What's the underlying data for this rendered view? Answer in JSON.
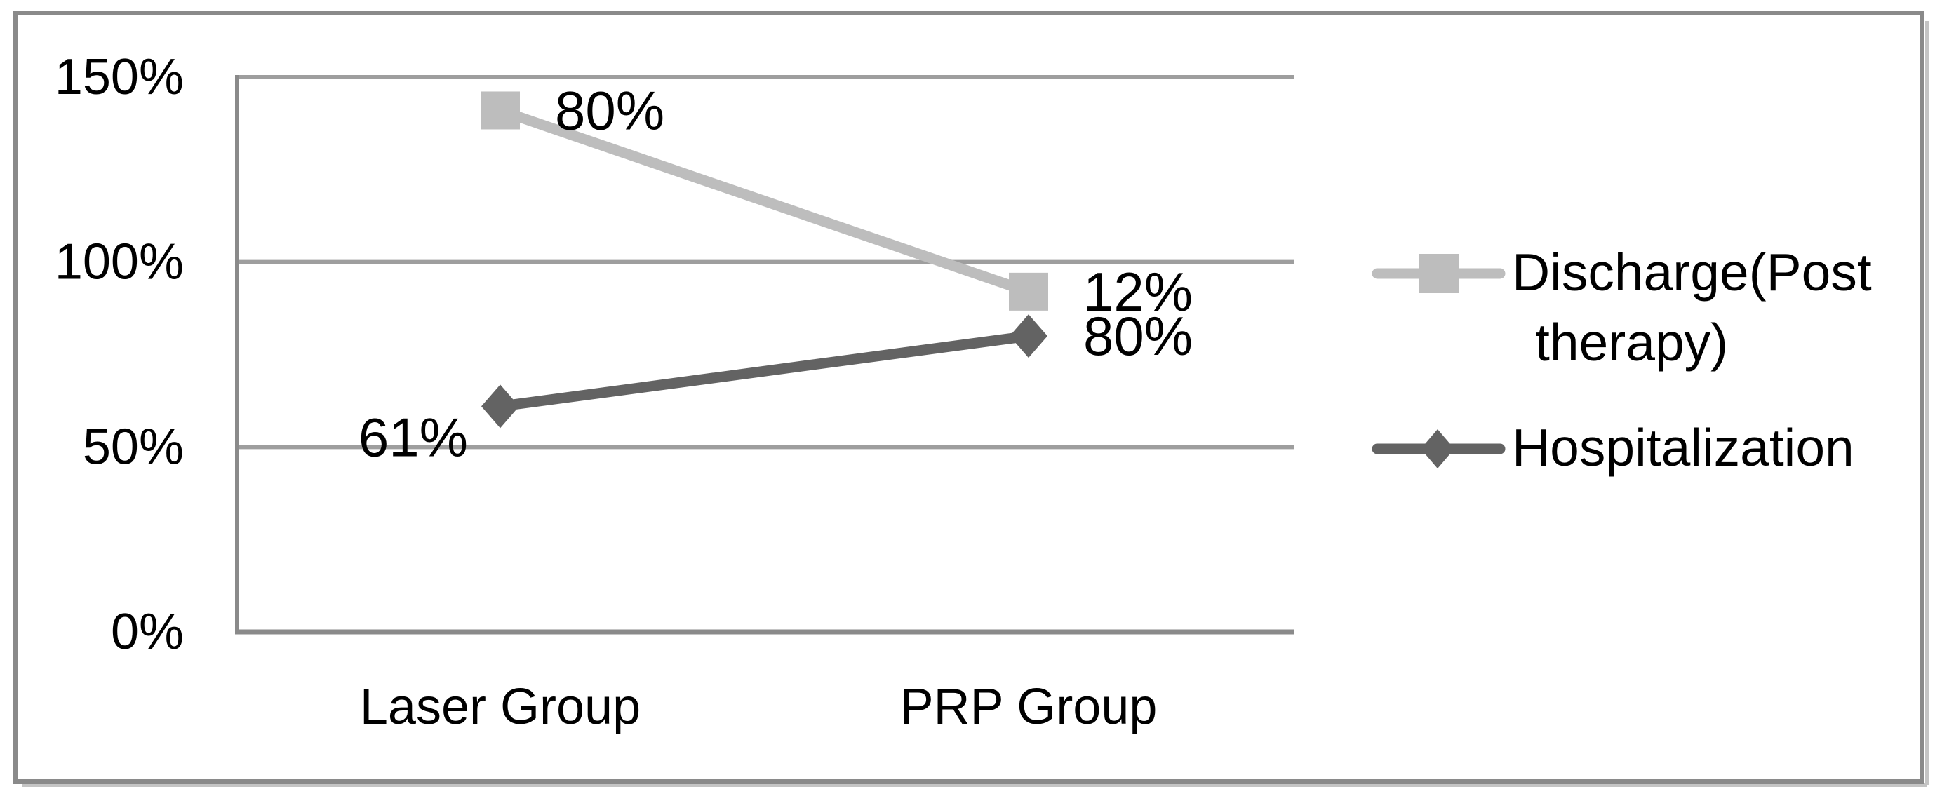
{
  "chart_data": {
    "type": "line",
    "stacked": true,
    "title": "",
    "xlabel": "",
    "ylabel": "",
    "categories": [
      "Laser Group",
      "PRP Group"
    ],
    "series": [
      {
        "name": "Discharge(Post therapy)",
        "values": [
          80,
          12
        ],
        "plotted_cumulative": [
          141,
          92
        ],
        "data_labels": [
          "80%",
          "12%"
        ],
        "label_positions": [
          "right",
          "right"
        ],
        "marker": "square",
        "color": "#bdbdbd",
        "legend_lines": [
          "Discharge(Post",
          "therapy)"
        ]
      },
      {
        "name": "Hospitalization",
        "values": [
          61,
          80
        ],
        "plotted_cumulative": [
          61,
          80
        ],
        "data_labels": [
          "61%",
          "80%"
        ],
        "label_positions": [
          "below-left",
          "right"
        ],
        "marker": "diamond",
        "color": "#636363",
        "legend_lines": [
          "Hospitalization"
        ]
      }
    ],
    "yticks": [
      "0%",
      "50%",
      "100%",
      "150%"
    ],
    "ytick_values": [
      0,
      50,
      100,
      150
    ],
    "ylim": [
      0,
      150
    ],
    "grid": true,
    "legend_position": "right",
    "colors": {
      "gridline": "#9e9e9e",
      "axis": "#8a8a8a",
      "outer_border": "#8a8a8a",
      "border_shadow": "#c4c4c4",
      "text": "#000000",
      "background": "#ffffff"
    }
  }
}
